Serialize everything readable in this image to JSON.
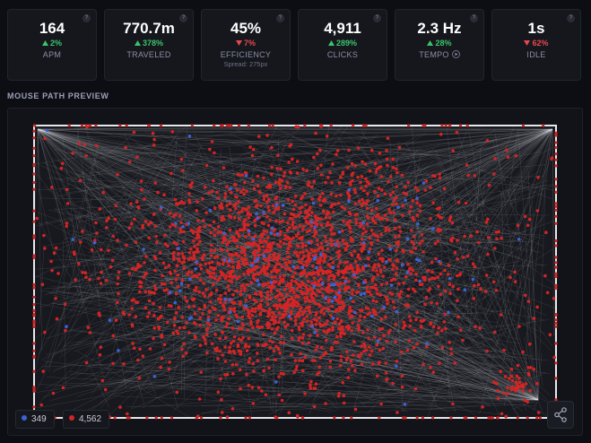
{
  "help_icon": "?",
  "stats": [
    {
      "value": "164",
      "delta": "2%",
      "trend": "up",
      "label": "APM"
    },
    {
      "value": "770.7m",
      "delta": "378%",
      "trend": "up",
      "label": "TRAVELED"
    },
    {
      "value": "45%",
      "delta": "7%",
      "trend": "down",
      "label": "EFFICIENCY",
      "sublabel": "Spread: 275px"
    },
    {
      "value": "4,911",
      "delta": "289%",
      "trend": "up",
      "label": "CLICKS"
    },
    {
      "value": "2.3 Hz",
      "delta": "28%",
      "trend": "up",
      "label": "TEMPO",
      "play": true
    },
    {
      "value": "1s",
      "delta": "62%",
      "trend": "down",
      "label": "IDLE"
    }
  ],
  "section_title": "MOUSE PATH PREVIEW",
  "legend": [
    {
      "color": "#3a63d8",
      "count": "349"
    },
    {
      "color": "#d42424",
      "count": "4,562"
    }
  ]
}
